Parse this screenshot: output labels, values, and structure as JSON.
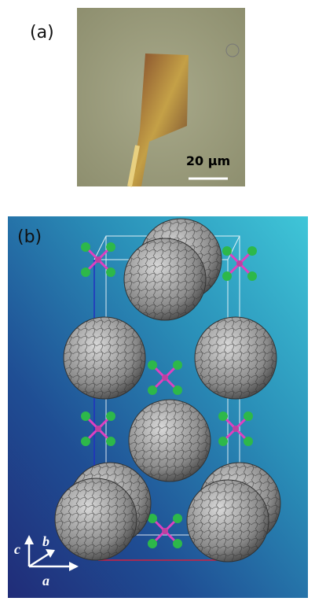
{
  "panels": [
    {
      "label": "(a)",
      "scale_bar": "20 μm"
    },
    {
      "label": "(b)",
      "axes": [
        "c",
        "b",
        "a"
      ]
    }
  ]
}
